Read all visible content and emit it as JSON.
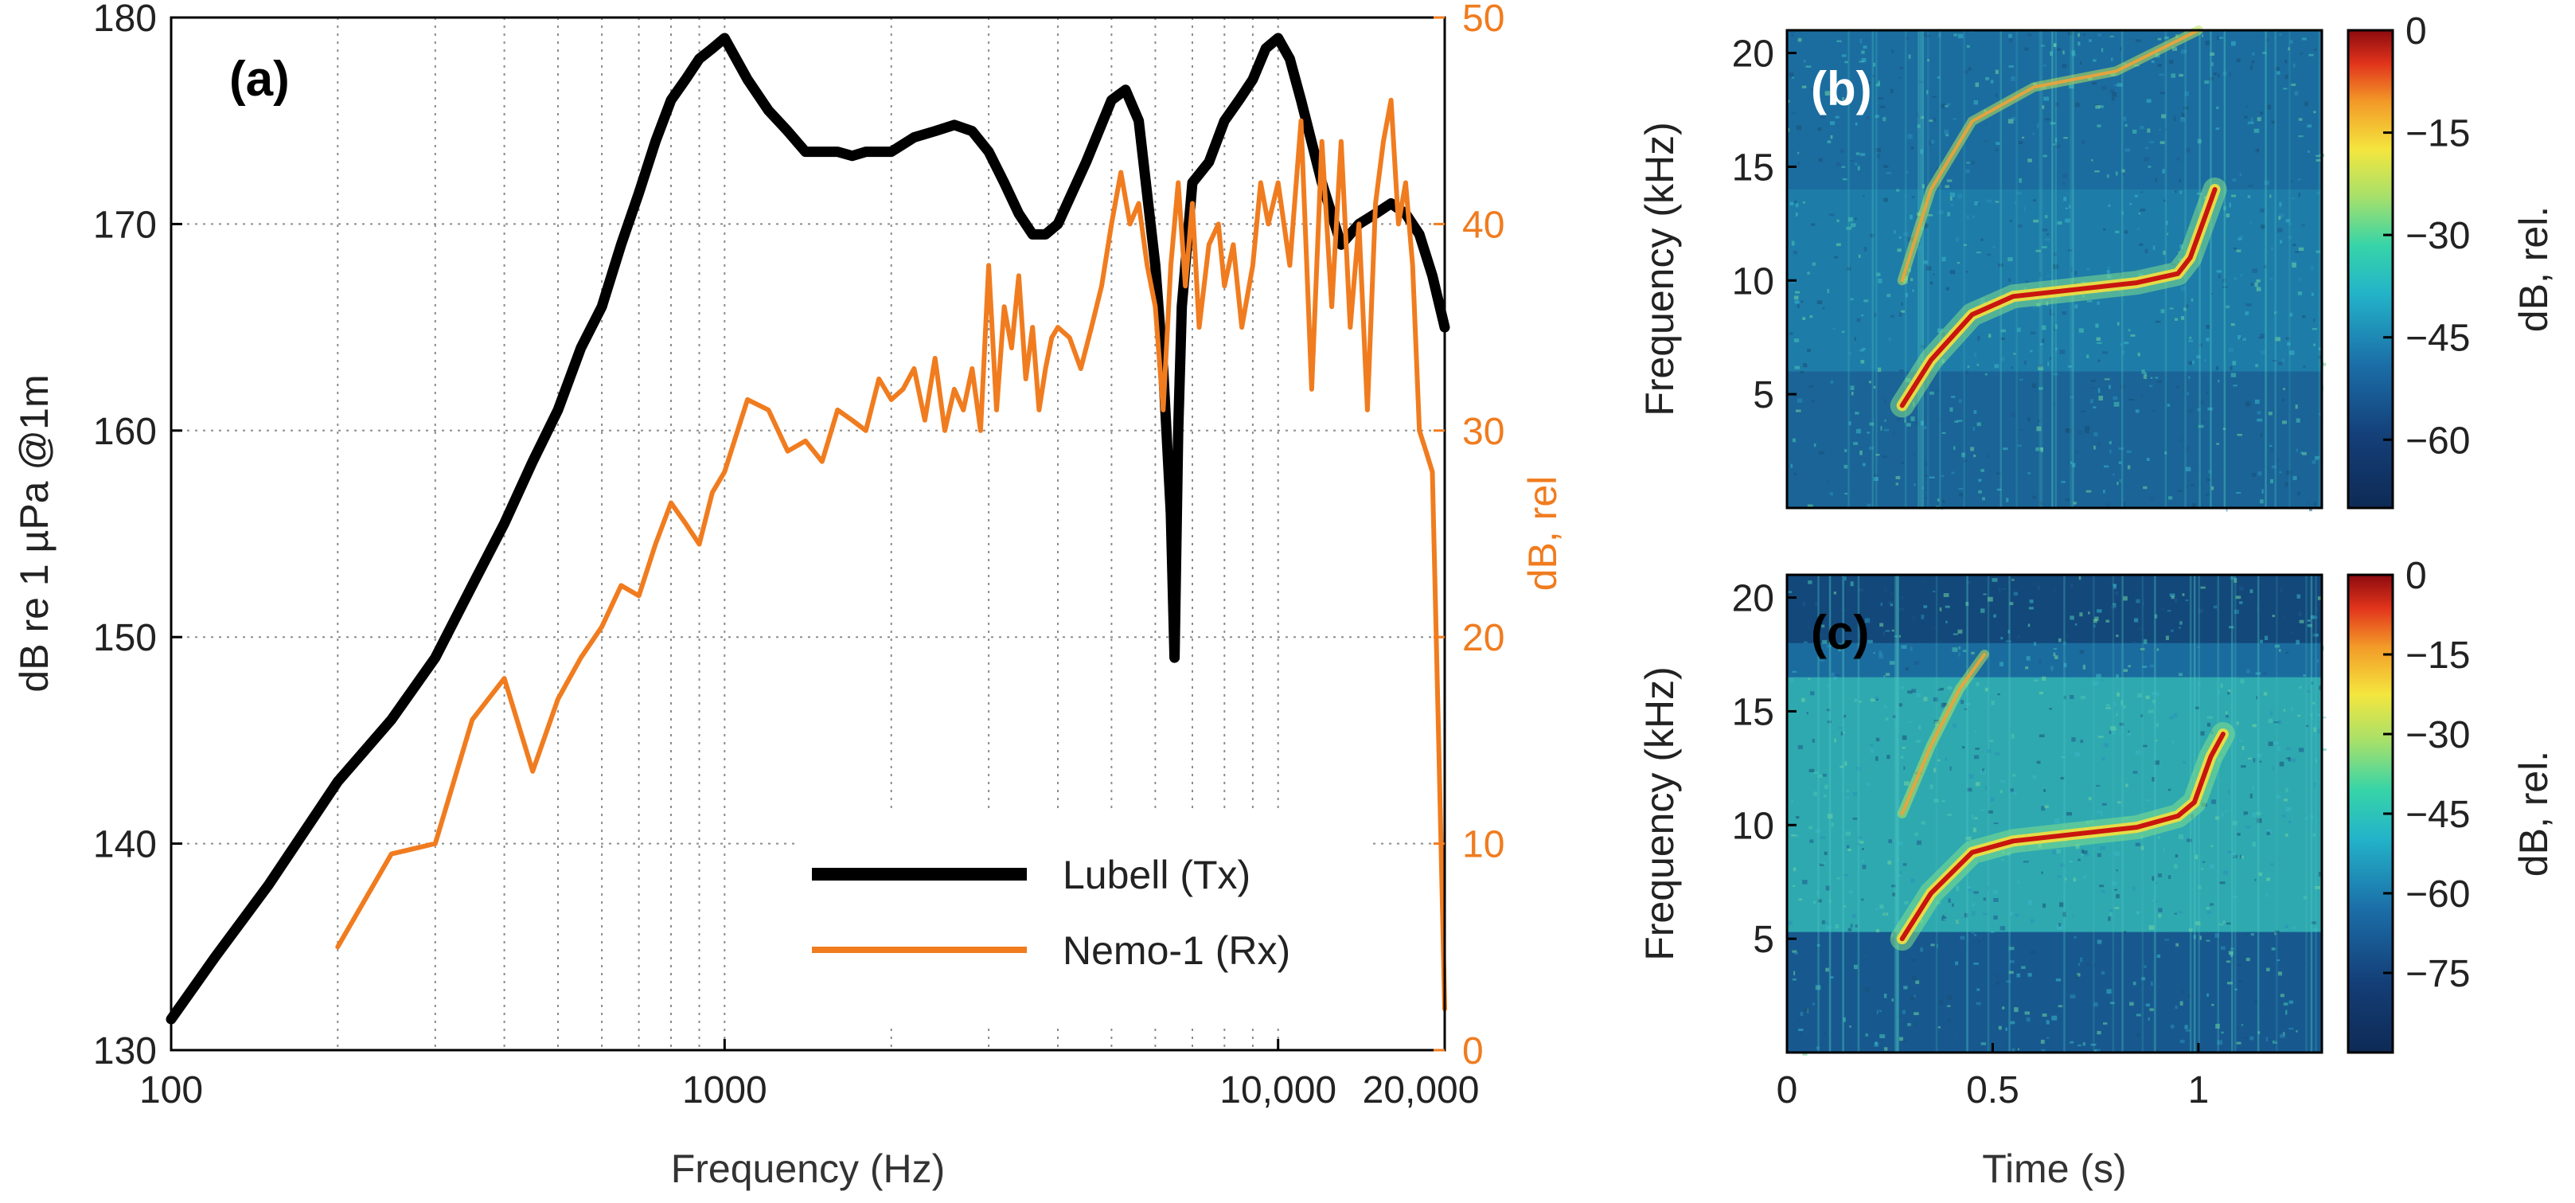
{
  "chart_data": [
    {
      "panel_label": "(a)",
      "type": "line",
      "xlabel": "Frequency (Hz)",
      "ylabel_left": "dB re 1 µPa @1m",
      "ylabel_right": "dB, rel",
      "x_scale": "log",
      "xlim": [
        100,
        20000
      ],
      "ylim_left": [
        130,
        180
      ],
      "ylim_right": [
        0,
        50
      ],
      "x_ticks": [
        {
          "value": 100,
          "label": "100"
        },
        {
          "value": 1000,
          "label": "1000"
        },
        {
          "value": 10000,
          "label": "10,000"
        },
        {
          "value": 20000,
          "label": "20,000"
        }
      ],
      "y_ticks_left": [
        "130",
        "140",
        "150",
        "160",
        "170",
        "180"
      ],
      "y_ticks_right": [
        "0",
        "10",
        "20",
        "30",
        "40",
        "50"
      ],
      "grid": true,
      "legend_position": "bottom-center",
      "series": [
        {
          "name": "Lubell (Tx)",
          "axis": "left",
          "color": "#000000",
          "x": [
            100,
            120,
            150,
            200,
            250,
            300,
            350,
            400,
            450,
            500,
            550,
            600,
            650,
            700,
            750,
            800,
            850,
            900,
            950,
            1000,
            1100,
            1200,
            1300,
            1400,
            1500,
            1600,
            1700,
            1800,
            1900,
            2000,
            2200,
            2400,
            2600,
            2800,
            3000,
            3200,
            3400,
            3600,
            3800,
            4000,
            4500,
            5000,
            5300,
            5600,
            6000,
            6200,
            6400,
            6500,
            6600,
            6700,
            7000,
            7500,
            8000,
            8500,
            9000,
            9500,
            10000,
            10500,
            11000,
            12000,
            13000,
            14000,
            15000,
            16000,
            17000,
            18000,
            19000,
            20000
          ],
          "y": [
            131.5,
            134.5,
            138,
            143,
            146,
            149,
            152.5,
            155.5,
            158.5,
            161,
            164,
            166,
            169,
            171.5,
            174,
            176,
            177,
            178,
            178.5,
            179,
            177,
            175.5,
            174.5,
            173.5,
            173.5,
            173.5,
            173.3,
            173.5,
            173.5,
            173.5,
            174.2,
            174.5,
            174.8,
            174.5,
            173.5,
            172,
            170.5,
            169.5,
            169.5,
            170,
            173,
            176,
            176.5,
            175,
            168,
            163,
            156,
            149,
            160,
            166,
            172,
            173,
            175,
            176,
            177,
            178.5,
            179,
            178,
            176,
            172,
            169,
            170,
            170.5,
            171,
            170.5,
            169.5,
            167.5,
            165
          ]
        },
        {
          "name": "Nemo-1 (Rx)",
          "axis": "right",
          "color": "#f07c1f",
          "x": [
            200,
            250,
            300,
            350,
            400,
            450,
            500,
            550,
            600,
            650,
            700,
            750,
            800,
            850,
            900,
            950,
            1000,
            1100,
            1200,
            1300,
            1400,
            1500,
            1600,
            1700,
            1800,
            1900,
            2000,
            2100,
            2200,
            2300,
            2400,
            2500,
            2600,
            2700,
            2800,
            2900,
            3000,
            3100,
            3200,
            3300,
            3400,
            3500,
            3600,
            3700,
            3800,
            3900,
            4000,
            4200,
            4400,
            4600,
            4800,
            5000,
            5200,
            5400,
            5600,
            5800,
            6000,
            6200,
            6400,
            6600,
            6800,
            7000,
            7200,
            7500,
            7800,
            8000,
            8300,
            8600,
            9000,
            9300,
            9600,
            10000,
            10500,
            11000,
            11500,
            12000,
            12500,
            13000,
            13500,
            14000,
            14500,
            15000,
            15500,
            16000,
            16500,
            17000,
            17500,
            18000,
            18500,
            19000,
            19500,
            20000
          ],
          "y": [
            5,
            9.5,
            10,
            16,
            18,
            13.5,
            17,
            19,
            20.5,
            22.5,
            22,
            24.5,
            26.5,
            25.5,
            24.5,
            27,
            28,
            31.5,
            31,
            29,
            29.5,
            28.5,
            31,
            30.5,
            30,
            32.5,
            31.5,
            32,
            33,
            30.5,
            33.5,
            30,
            32,
            31,
            33,
            30,
            38,
            31,
            36,
            34,
            37.5,
            32.5,
            35,
            31,
            33,
            34.5,
            35,
            34.5,
            33,
            35,
            37,
            40,
            42.5,
            40,
            41,
            38,
            36,
            31,
            38,
            42,
            37,
            41,
            35,
            39,
            40,
            37,
            39,
            35,
            38,
            42,
            40,
            42,
            38,
            45,
            32,
            44,
            36,
            44,
            35,
            40,
            31,
            41,
            44,
            46,
            40,
            42,
            38,
            30,
            29,
            28,
            15,
            2
          ]
        }
      ]
    },
    {
      "panel_label": "(b)",
      "type": "heatmap",
      "xlabel": "",
      "ylabel": "Frequency (kHz)",
      "xlim": [
        0,
        1.3
      ],
      "ylim": [
        0,
        21
      ],
      "y_ticks": [
        "5",
        "10",
        "15",
        "20"
      ],
      "colorbar_label": "dB, rel.",
      "colorbar_range": [
        -70,
        0
      ],
      "colorbar_ticks": [
        "0",
        "−15",
        "−30",
        "−45",
        "−60"
      ],
      "features": {
        "main_call_t": [
          0.28,
          0.35,
          0.45,
          0.55,
          0.7,
          0.85,
          0.95,
          0.98,
          1.02,
          1.04
        ],
        "main_call_khz": [
          4.5,
          6.5,
          8.5,
          9.3,
          9.6,
          9.9,
          10.3,
          11,
          13,
          14
        ],
        "harmonic_t": [
          0.28,
          0.35,
          0.45,
          0.6,
          0.8,
          1.0
        ],
        "harmonic_khz": [
          10,
          14,
          17,
          18.5,
          19.2,
          21
        ]
      }
    },
    {
      "panel_label": "(c)",
      "type": "heatmap",
      "xlabel": "Time (s)",
      "ylabel": "Frequency (kHz)",
      "xlim": [
        0,
        1.3
      ],
      "ylim": [
        0,
        21
      ],
      "x_ticks": [
        "0",
        "0.5",
        "1"
      ],
      "y_ticks": [
        "5",
        "10",
        "15",
        "20"
      ],
      "colorbar_label": "dB, rel.",
      "colorbar_range": [
        -90,
        0
      ],
      "colorbar_ticks": [
        "0",
        "−15",
        "−30",
        "−45",
        "−60",
        "−75"
      ],
      "features": {
        "main_call_t": [
          0.28,
          0.35,
          0.45,
          0.55,
          0.7,
          0.85,
          0.95,
          0.99,
          1.03,
          1.06
        ],
        "main_call_khz": [
          5,
          7,
          8.8,
          9.3,
          9.6,
          9.9,
          10.4,
          11,
          13,
          14
        ],
        "harmonic_t": [
          0.28,
          0.35,
          0.42,
          0.48
        ],
        "harmonic_khz": [
          10.5,
          13.5,
          16,
          17.5
        ]
      }
    }
  ]
}
